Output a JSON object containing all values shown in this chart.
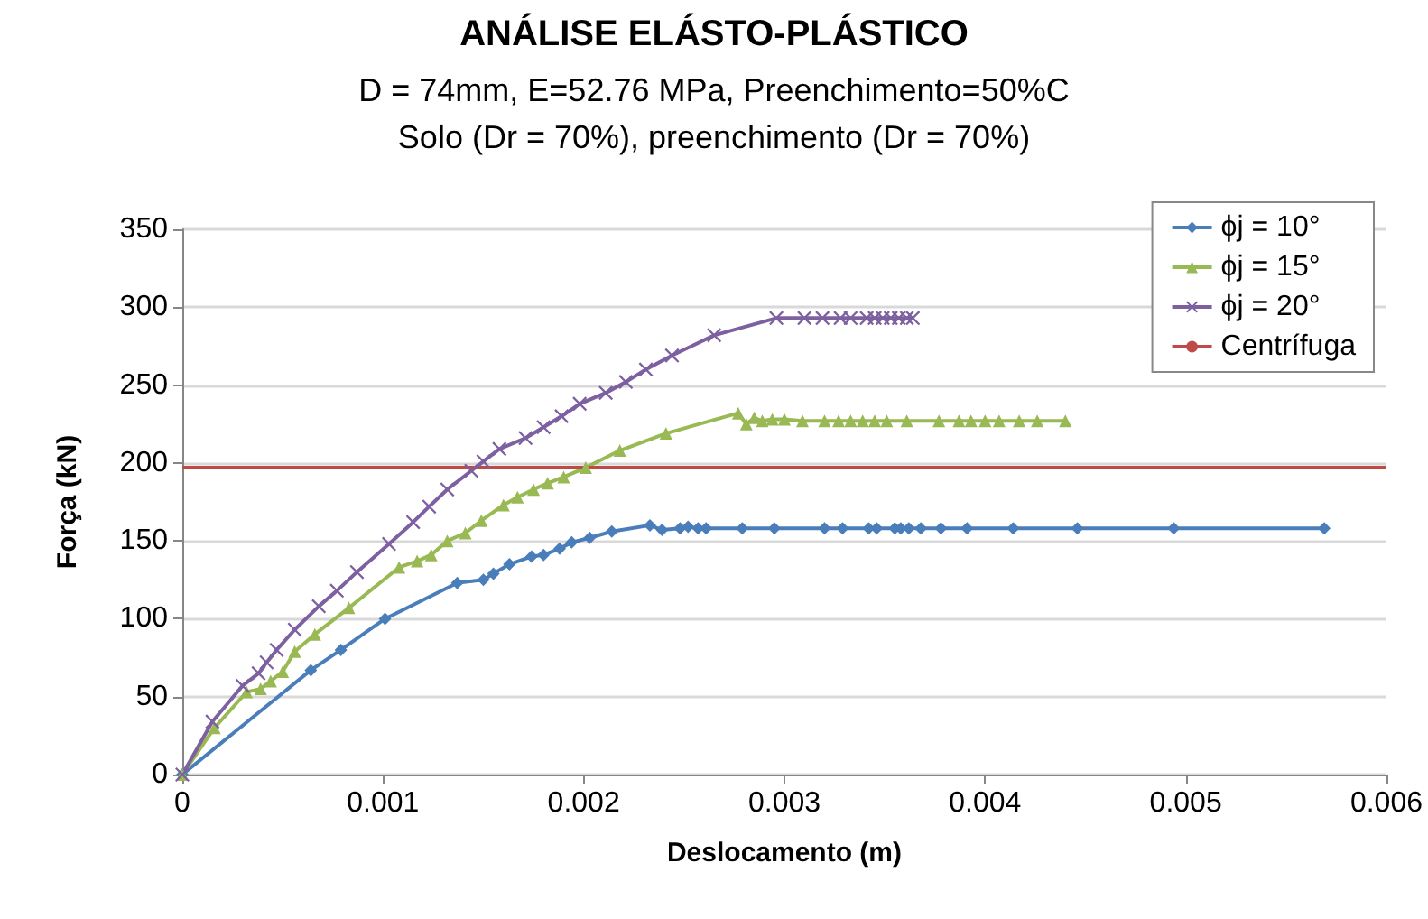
{
  "chart_data": {
    "type": "line",
    "title": "ANÁLISE ELÁSTO-PLÁSTICO",
    "subtitle": "D = 74mm, E=52.76 MPa, Preenchimento=50%C\nSolo (Dr = 70%), preenchimento (Dr = 70%)",
    "xlabel": "Deslocamento (m)",
    "ylabel": "Força (kN)",
    "xlim": [
      0,
      0.006
    ],
    "xticks": [
      0,
      0.001,
      0.002,
      0.003,
      0.004,
      0.005,
      0.006
    ],
    "ylim": [
      0,
      350
    ],
    "yticks": [
      0,
      50,
      100,
      150,
      200,
      250,
      300,
      350
    ],
    "grid": "y",
    "legend": "top right",
    "series": [
      {
        "name": "ϕj = 10°",
        "color": "#4a7ebb",
        "marker": "diamond",
        "x": [
          0,
          0.00064,
          0.00079,
          0.00101,
          0.00137,
          0.0015,
          0.00155,
          0.00163,
          0.00174,
          0.0018,
          0.00188,
          0.00194,
          0.00203,
          0.00214,
          0.00233,
          0.00239,
          0.00248,
          0.00252,
          0.00257,
          0.00261,
          0.00279,
          0.00295,
          0.0032,
          0.00329,
          0.00342,
          0.00346,
          0.00355,
          0.00358,
          0.00362,
          0.00368,
          0.00378,
          0.00391,
          0.00414,
          0.00446,
          0.00494,
          0.00569
        ],
        "values": [
          0,
          67,
          80,
          100,
          123,
          125,
          129,
          135,
          140,
          141,
          145,
          149,
          152,
          156,
          160,
          157,
          158,
          159,
          158,
          158,
          158,
          158,
          158,
          158,
          158,
          158,
          158,
          158,
          158,
          158,
          158,
          158,
          158,
          158,
          158,
          158
        ]
      },
      {
        "name": "ϕj = 15°",
        "color": "#98b954",
        "marker": "triangle",
        "x": [
          0,
          0.00016,
          0.00032,
          0.00039,
          0.00044,
          0.0005,
          0.00056,
          0.00066,
          0.00083,
          0.00108,
          0.00117,
          0.00124,
          0.00132,
          0.00141,
          0.00149,
          0.0016,
          0.00167,
          0.00175,
          0.00182,
          0.0019,
          0.00201,
          0.00218,
          0.00241,
          0.00277,
          0.00281,
          0.00285,
          0.00289,
          0.00294,
          0.003,
          0.00309,
          0.0032,
          0.00327,
          0.00333,
          0.00339,
          0.00345,
          0.00351,
          0.00361,
          0.00377,
          0.00387,
          0.00393,
          0.004,
          0.00407,
          0.00417,
          0.00426,
          0.0044
        ],
        "values": [
          0,
          30,
          53,
          55,
          60,
          66,
          79,
          90,
          107,
          133,
          137,
          141,
          150,
          155,
          163,
          173,
          178,
          183,
          187,
          191,
          197,
          208,
          219,
          232,
          225,
          229,
          227,
          228,
          228,
          227,
          227,
          227,
          227,
          227,
          227,
          227,
          227,
          227,
          227,
          227,
          227,
          227,
          227,
          227,
          227
        ]
      },
      {
        "name": "ϕj = 20°",
        "color": "#7d60a0",
        "marker": "cross",
        "x": [
          0,
          0.00015,
          0.0003,
          0.00038,
          0.00042,
          0.00047,
          0.00056,
          0.00068,
          0.00077,
          0.00087,
          0.00103,
          0.00115,
          0.00123,
          0.00132,
          0.00144,
          0.0015,
          0.00158,
          0.00171,
          0.0018,
          0.00189,
          0.00198,
          0.00211,
          0.00221,
          0.00231,
          0.00244,
          0.00265,
          0.00296,
          0.0031,
          0.00319,
          0.00328,
          0.00333,
          0.00341,
          0.00345,
          0.00349,
          0.00353,
          0.00357,
          0.00361,
          0.00364
        ],
        "values": [
          0,
          34,
          57,
          65,
          72,
          80,
          93,
          108,
          118,
          130,
          148,
          162,
          172,
          183,
          195,
          201,
          209,
          216,
          223,
          230,
          238,
          245,
          252,
          260,
          269,
          282,
          293,
          293,
          293,
          293,
          293,
          293,
          293,
          293,
          293,
          293,
          293,
          293
        ]
      }
    ],
    "ref_lines": [
      {
        "axis": "y",
        "value": 197,
        "label": "Centrífuga",
        "color": "#be4b48"
      }
    ]
  }
}
